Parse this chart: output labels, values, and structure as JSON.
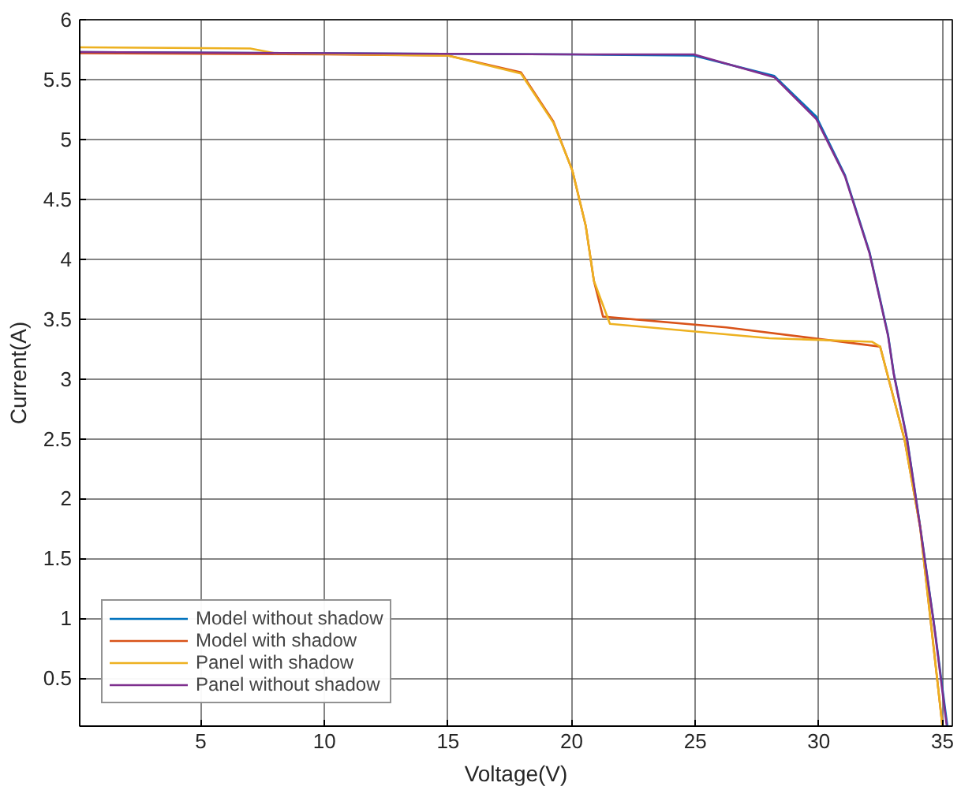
{
  "chart_data": {
    "type": "line",
    "xlabel": "Voltage(V)",
    "ylabel": "Current(A)",
    "xlim": [
      0.1,
      35.4
    ],
    "ylim": [
      0.1,
      6
    ],
    "xticks": [
      5,
      10,
      15,
      20,
      25,
      30,
      35
    ],
    "yticks": [
      0.5,
      1,
      1.5,
      2,
      2.5,
      3,
      3.5,
      4,
      4.5,
      5,
      5.5,
      6
    ],
    "grid": true,
    "legend": "bottom left",
    "marker": "none",
    "line_style": "solid",
    "series": [
      {
        "name": "Model without shadow",
        "color": "#0072bd",
        "x": [
          0.1,
          10,
          20,
          24.94,
          28.2,
          29.9,
          31.06,
          32.05,
          32.8,
          33.03,
          33.57,
          34.1,
          34.67,
          35.2
        ],
        "values": [
          5.73,
          5.72,
          5.71,
          5.7,
          5.53,
          5.19,
          4.7,
          4.06,
          3.37,
          3.05,
          2.5,
          1.77,
          0.94,
          0.1
        ]
      },
      {
        "name": "Model with shadow",
        "color": "#d95319",
        "x": [
          0.1,
          10,
          15,
          17.95,
          19.26,
          20.03,
          20.57,
          20.9,
          21.27,
          26.26,
          32.48,
          33.47,
          34.1,
          35.0
        ],
        "values": [
          5.72,
          5.71,
          5.7,
          5.56,
          5.15,
          4.74,
          4.28,
          3.82,
          3.52,
          3.43,
          3.27,
          2.49,
          1.76,
          0.1
        ]
      },
      {
        "name": "Panel with shadow",
        "color": "#edb120",
        "x": [
          0.1,
          7,
          8,
          15,
          17.95,
          19.26,
          20.03,
          20.57,
          20.9,
          21.55,
          28.0,
          32.16,
          32.48,
          33.47,
          34.1,
          35.0
        ],
        "values": [
          5.77,
          5.76,
          5.72,
          5.7,
          5.55,
          5.14,
          4.74,
          4.28,
          3.82,
          3.46,
          3.34,
          3.31,
          3.27,
          2.49,
          1.76,
          0.1
        ]
      },
      {
        "name": "Panel without shadow",
        "color": "#7e2f8e",
        "x": [
          0.1,
          10,
          20,
          24.94,
          28.2,
          29.9,
          31.06,
          32.05,
          32.8,
          33.03,
          33.57,
          34.1,
          34.67,
          35.17
        ],
        "values": [
          5.73,
          5.72,
          5.71,
          5.71,
          5.52,
          5.17,
          4.69,
          4.05,
          3.36,
          3.04,
          2.49,
          1.76,
          0.93,
          0.11
        ]
      }
    ]
  }
}
